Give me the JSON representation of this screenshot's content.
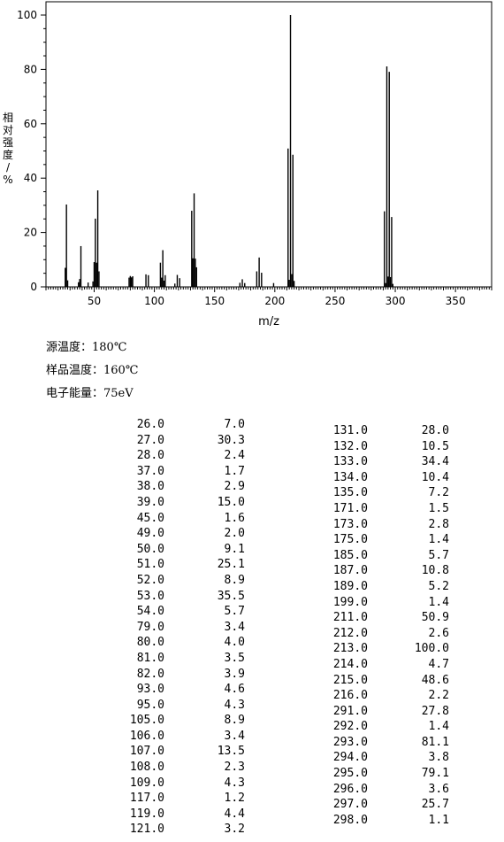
{
  "chart_data": {
    "type": "bar",
    "xlabel": "m/z",
    "ylabel": "相对强度/%",
    "xlim": [
      10,
      380
    ],
    "ylim": [
      0,
      100
    ],
    "xticks": [
      50,
      100,
      150,
      200,
      250,
      300,
      350
    ],
    "yticks": [
      0,
      20,
      40,
      60,
      80,
      100
    ],
    "x_minor_tick_step": 2,
    "y_minor_tick_step": 5,
    "x": [
      26,
      27,
      28,
      37,
      38,
      39,
      45,
      49,
      50,
      51,
      52,
      53,
      54,
      79,
      80,
      81,
      82,
      93,
      95,
      105,
      106,
      107,
      108,
      109,
      117,
      119,
      121,
      131,
      132,
      133,
      134,
      135,
      171,
      173,
      175,
      185,
      187,
      189,
      199,
      211,
      212,
      213,
      214,
      215,
      216,
      291,
      292,
      293,
      294,
      295,
      296,
      297,
      298
    ],
    "values": [
      7.0,
      30.3,
      2.4,
      1.7,
      2.9,
      15.0,
      1.6,
      2.0,
      9.1,
      25.1,
      8.9,
      35.5,
      5.7,
      3.4,
      4.0,
      3.5,
      3.9,
      4.6,
      4.3,
      8.9,
      3.4,
      13.5,
      2.3,
      4.3,
      1.2,
      4.4,
      3.2,
      28.0,
      10.5,
      34.4,
      10.4,
      7.2,
      1.5,
      2.8,
      1.4,
      5.7,
      10.8,
      5.2,
      1.4,
      50.9,
      2.6,
      100.0,
      4.7,
      48.6,
      2.2,
      27.8,
      1.4,
      81.1,
      3.8,
      79.1,
      3.6,
      25.7,
      1.1
    ]
  },
  "ylabel_chars": [
    "相",
    "对",
    "强",
    "度",
    "/",
    "%"
  ],
  "conditions": [
    {
      "label": "源温度：",
      "value": "180℃"
    },
    {
      "label": "样品温度：",
      "value": "160℃"
    },
    {
      "label": "电子能量：",
      "value": "75eV"
    }
  ],
  "table_left": [
    [
      "26.0",
      "7.0"
    ],
    [
      "27.0",
      "30.3"
    ],
    [
      "28.0",
      "2.4"
    ],
    [
      "37.0",
      "1.7"
    ],
    [
      "38.0",
      "2.9"
    ],
    [
      "39.0",
      "15.0"
    ],
    [
      "45.0",
      "1.6"
    ],
    [
      "49.0",
      "2.0"
    ],
    [
      "50.0",
      "9.1"
    ],
    [
      "51.0",
      "25.1"
    ],
    [
      "52.0",
      "8.9"
    ],
    [
      "53.0",
      "35.5"
    ],
    [
      "54.0",
      "5.7"
    ],
    [
      "79.0",
      "3.4"
    ],
    [
      "80.0",
      "4.0"
    ],
    [
      "81.0",
      "3.5"
    ],
    [
      "82.0",
      "3.9"
    ],
    [
      "93.0",
      "4.6"
    ],
    [
      "95.0",
      "4.3"
    ],
    [
      "105.0",
      "8.9"
    ],
    [
      "106.0",
      "3.4"
    ],
    [
      "107.0",
      "13.5"
    ],
    [
      "108.0",
      "2.3"
    ],
    [
      "109.0",
      "4.3"
    ],
    [
      "117.0",
      "1.2"
    ],
    [
      "119.0",
      "4.4"
    ],
    [
      "121.0",
      "3.2"
    ]
  ],
  "table_right": [
    [
      "131.0",
      "28.0"
    ],
    [
      "132.0",
      "10.5"
    ],
    [
      "133.0",
      "34.4"
    ],
    [
      "134.0",
      "10.4"
    ],
    [
      "135.0",
      "7.2"
    ],
    [
      "171.0",
      "1.5"
    ],
    [
      "173.0",
      "2.8"
    ],
    [
      "175.0",
      "1.4"
    ],
    [
      "185.0",
      "5.7"
    ],
    [
      "187.0",
      "10.8"
    ],
    [
      "189.0",
      "5.2"
    ],
    [
      "199.0",
      "1.4"
    ],
    [
      "211.0",
      "50.9"
    ],
    [
      "212.0",
      "2.6"
    ],
    [
      "213.0",
      "100.0"
    ],
    [
      "214.0",
      "4.7"
    ],
    [
      "215.0",
      "48.6"
    ],
    [
      "216.0",
      "2.2"
    ],
    [
      "291.0",
      "27.8"
    ],
    [
      "292.0",
      "1.4"
    ],
    [
      "293.0",
      "81.1"
    ],
    [
      "294.0",
      "3.8"
    ],
    [
      "295.0",
      "79.1"
    ],
    [
      "296.0",
      "3.6"
    ],
    [
      "297.0",
      "25.7"
    ],
    [
      "298.0",
      "1.1"
    ]
  ]
}
